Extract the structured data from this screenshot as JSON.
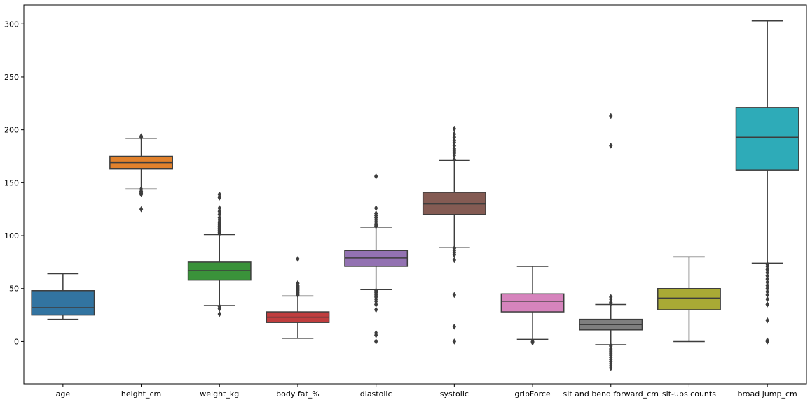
{
  "chart_data": {
    "type": "box",
    "title": "",
    "xlabel": "",
    "ylabel": "",
    "ylim": [
      -40,
      318
    ],
    "yticks": [
      0,
      50,
      100,
      150,
      200,
      250,
      300
    ],
    "grid": false,
    "categories": [
      "age",
      "height_cm",
      "weight_kg",
      "body fat_%",
      "diastolic",
      "systolic",
      "gripForce",
      "sit and bend forward_cm",
      "sit-ups counts",
      "broad jump_cm"
    ],
    "colors": [
      "#3274a1",
      "#e1812c",
      "#3a923a",
      "#c03d3e",
      "#9372b2",
      "#845b53",
      "#d684bd",
      "#7f7f7f",
      "#a9aa35",
      "#2eabb8"
    ],
    "boxes": [
      {
        "category": "age",
        "whisker_low": 21,
        "q1": 25,
        "median": 32,
        "q3": 48,
        "whisker_high": 64,
        "outliers": []
      },
      {
        "category": "height_cm",
        "whisker_low": 144,
        "q1": 163,
        "median": 169,
        "q3": 175,
        "whisker_high": 192,
        "outliers": [
          125,
          139,
          140,
          141,
          142,
          144,
          193,
          194
        ]
      },
      {
        "category": "weight_kg",
        "whisker_low": 34,
        "q1": 58,
        "median": 67,
        "q3": 75,
        "whisker_high": 101,
        "outliers": [
          26,
          31,
          33,
          102,
          103,
          104,
          105,
          106,
          107,
          108,
          109,
          110,
          111,
          112,
          113,
          115,
          117,
          120,
          123,
          126,
          136,
          139
        ]
      },
      {
        "category": "body fat_%",
        "whisker_low": 3,
        "q1": 18,
        "median": 23,
        "q3": 28,
        "whisker_high": 43,
        "outliers": [
          44,
          45,
          46,
          47,
          48,
          49,
          50,
          51,
          52,
          53,
          55,
          78
        ]
      },
      {
        "category": "diastolic",
        "whisker_low": 49,
        "q1": 71,
        "median": 79,
        "q3": 86,
        "whisker_high": 108,
        "outliers": [
          0,
          6,
          8,
          30,
          35,
          38,
          40,
          42,
          44,
          46,
          47,
          48,
          109,
          110,
          111,
          113,
          115,
          117,
          119,
          121,
          126,
          156
        ]
      },
      {
        "category": "systolic",
        "whisker_low": 89,
        "q1": 120,
        "median": 130,
        "q3": 141,
        "whisker_high": 171,
        "outliers": [
          0,
          14,
          44,
          77,
          82,
          84,
          86,
          88,
          172,
          176,
          178,
          180,
          182,
          185,
          188,
          190,
          193,
          196,
          201
        ]
      },
      {
        "category": "gripForce",
        "whisker_low": 2,
        "q1": 28,
        "median": 38,
        "q3": 45,
        "whisker_high": 71,
        "outliers": [
          -1,
          0
        ]
      },
      {
        "category": "sit and bend forward_cm",
        "whisker_low": -3,
        "q1": 11,
        "median": 16,
        "q3": 21,
        "whisker_high": 35,
        "outliers": [
          -25,
          -23,
          -21,
          -19,
          -17,
          -15,
          -13,
          -11,
          -9,
          -7,
          -5,
          -4,
          36,
          37,
          40,
          42,
          185,
          213
        ]
      },
      {
        "category": "sit-ups counts",
        "whisker_low": 0,
        "q1": 30,
        "median": 41,
        "q3": 50,
        "whisker_high": 80,
        "outliers": []
      },
      {
        "category": "broad jump_cm",
        "whisker_low": 74,
        "q1": 162,
        "median": 193,
        "q3": 221,
        "whisker_high": 303,
        "outliers": [
          0,
          1,
          20,
          35,
          40,
          44,
          47,
          50,
          53,
          56,
          59,
          62,
          65,
          68,
          71,
          73
        ]
      }
    ]
  }
}
